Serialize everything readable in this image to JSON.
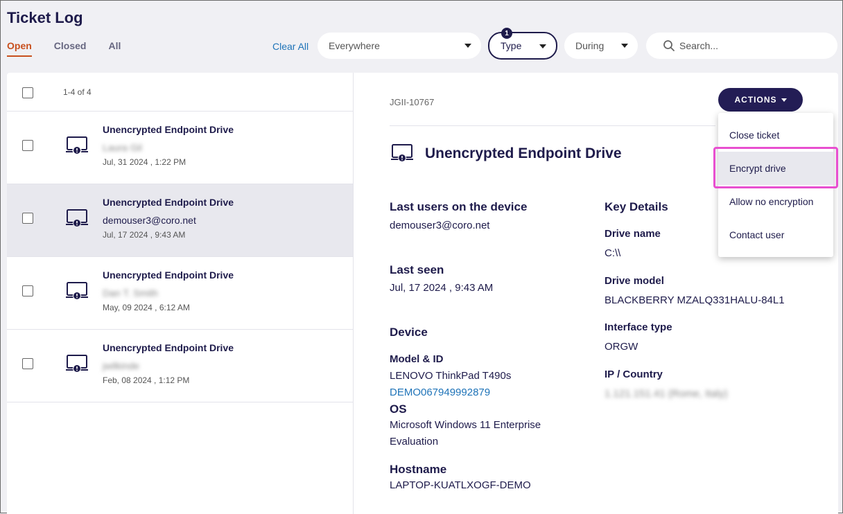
{
  "header": {
    "title": "Ticket Log"
  },
  "tabs": [
    {
      "label": "Open",
      "active": true
    },
    {
      "label": "Closed",
      "active": false
    },
    {
      "label": "All",
      "active": false
    }
  ],
  "filters": {
    "clear_all": "Clear All",
    "everywhere": "Everywhere",
    "type": "Type",
    "type_badge": "1",
    "during": "During",
    "search_placeholder": "Search..."
  },
  "list": {
    "count": "1-4 of 4",
    "items": [
      {
        "title": "Unencrypted Endpoint Drive",
        "user": "Laura Gil",
        "user_blurred": true,
        "date": "Jul, 31 2024 , 1:22 PM"
      },
      {
        "title": "Unencrypted Endpoint Drive",
        "user": "demouser3@coro.net",
        "user_blurred": false,
        "date": "Jul, 17 2024 , 9:43 AM",
        "selected": true
      },
      {
        "title": "Unencrypted Endpoint Drive",
        "user": "Dan T. Smith",
        "user_blurred": true,
        "date": "May, 09 2024 , 6:12 AM"
      },
      {
        "title": "Unencrypted Endpoint Drive",
        "user": "jwilkinde",
        "user_blurred": true,
        "date": "Feb, 08 2024 , 1:12 PM"
      }
    ]
  },
  "detail": {
    "ticket_id": "JGII-10767",
    "actions_label": "ACTIONS",
    "title": "Unencrypted Endpoint Drive",
    "last_users_label": "Last users on the device",
    "last_users_value": "demouser3@coro.net",
    "last_seen_label": "Last seen",
    "last_seen_value": "Jul, 17 2024 , 9:43 AM",
    "device_label": "Device",
    "model_label": "Model & ID",
    "model_value": "LENOVO ThinkPad T490s",
    "model_id": "DEMO067949992879",
    "os_label": "OS",
    "os_value_1": "Microsoft Windows 11 Enterprise",
    "os_value_2": "Evaluation",
    "hostname_label": "Hostname",
    "hostname_value": "LAPTOP-KUATLXOGF-DEMO",
    "key_details_label": "Key Details",
    "drive_name_label": "Drive name",
    "drive_name_value": "C:\\\\",
    "drive_model_label": "Drive model",
    "drive_model_value": "BLACKBERRY MZALQ331HALU-84L1",
    "interface_label": "Interface type",
    "interface_value": "ORGW",
    "ip_label": "IP / Country",
    "ip_value": "1.121.151.41 (Rome, Italy)"
  },
  "menu": {
    "items": [
      {
        "label": "Close ticket"
      },
      {
        "label": "Encrypt drive",
        "highlighted": true
      },
      {
        "label": "Allow no encryption"
      },
      {
        "label": "Contact user"
      }
    ]
  },
  "colors": {
    "accent": "#c8501e",
    "primary": "#231d55",
    "link": "#1e73b8",
    "highlight": "#e84fd0"
  }
}
